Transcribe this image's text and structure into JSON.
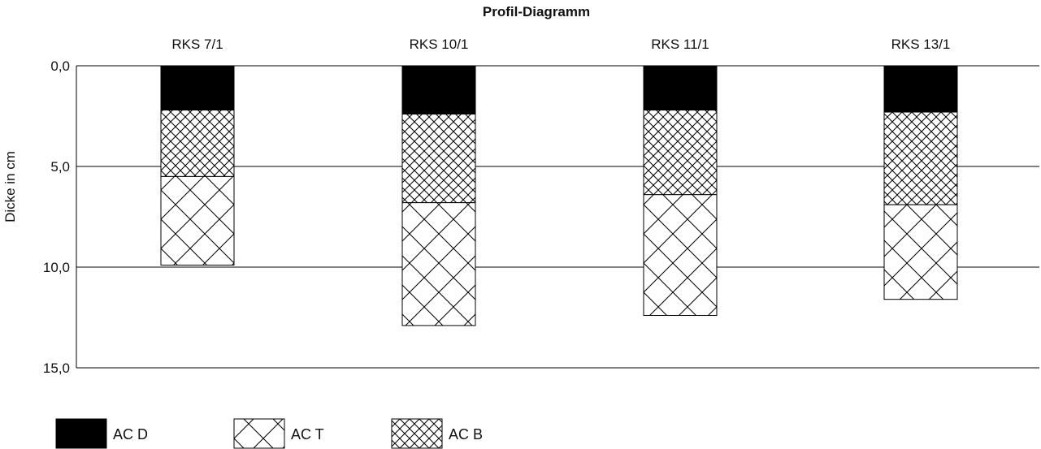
{
  "chart_data": {
    "type": "bar",
    "title": "Profil-Diagramm",
    "ylabel": "Dicke in cm",
    "xlabel": "",
    "ylim": [
      0,
      15
    ],
    "y_inverted": true,
    "y_ticks": [
      0,
      5,
      10,
      15
    ],
    "y_tick_labels": [
      "0,0",
      "5,0",
      "10,0",
      "15,0"
    ],
    "grid": true,
    "legend_position": "bottom-left",
    "stacked": true,
    "categories": [
      "RKS 7/1",
      "RKS 10/1",
      "RKS 11/1",
      "RKS 13/1"
    ],
    "series": [
      {
        "name": "AC D",
        "pattern": "solid",
        "color": "#000000",
        "values": [
          2.2,
          2.4,
          2.2,
          2.3
        ]
      },
      {
        "name": "AC B",
        "pattern": "dense-crosshatch",
        "color": "#000000",
        "values": [
          3.3,
          4.4,
          4.2,
          4.6
        ]
      },
      {
        "name": "AC T",
        "pattern": "sparse-crosshatch",
        "color": "#000000",
        "values": [
          4.4,
          6.1,
          6.0,
          4.7
        ]
      }
    ],
    "legend_order": [
      "AC D",
      "AC T",
      "AC B"
    ]
  }
}
